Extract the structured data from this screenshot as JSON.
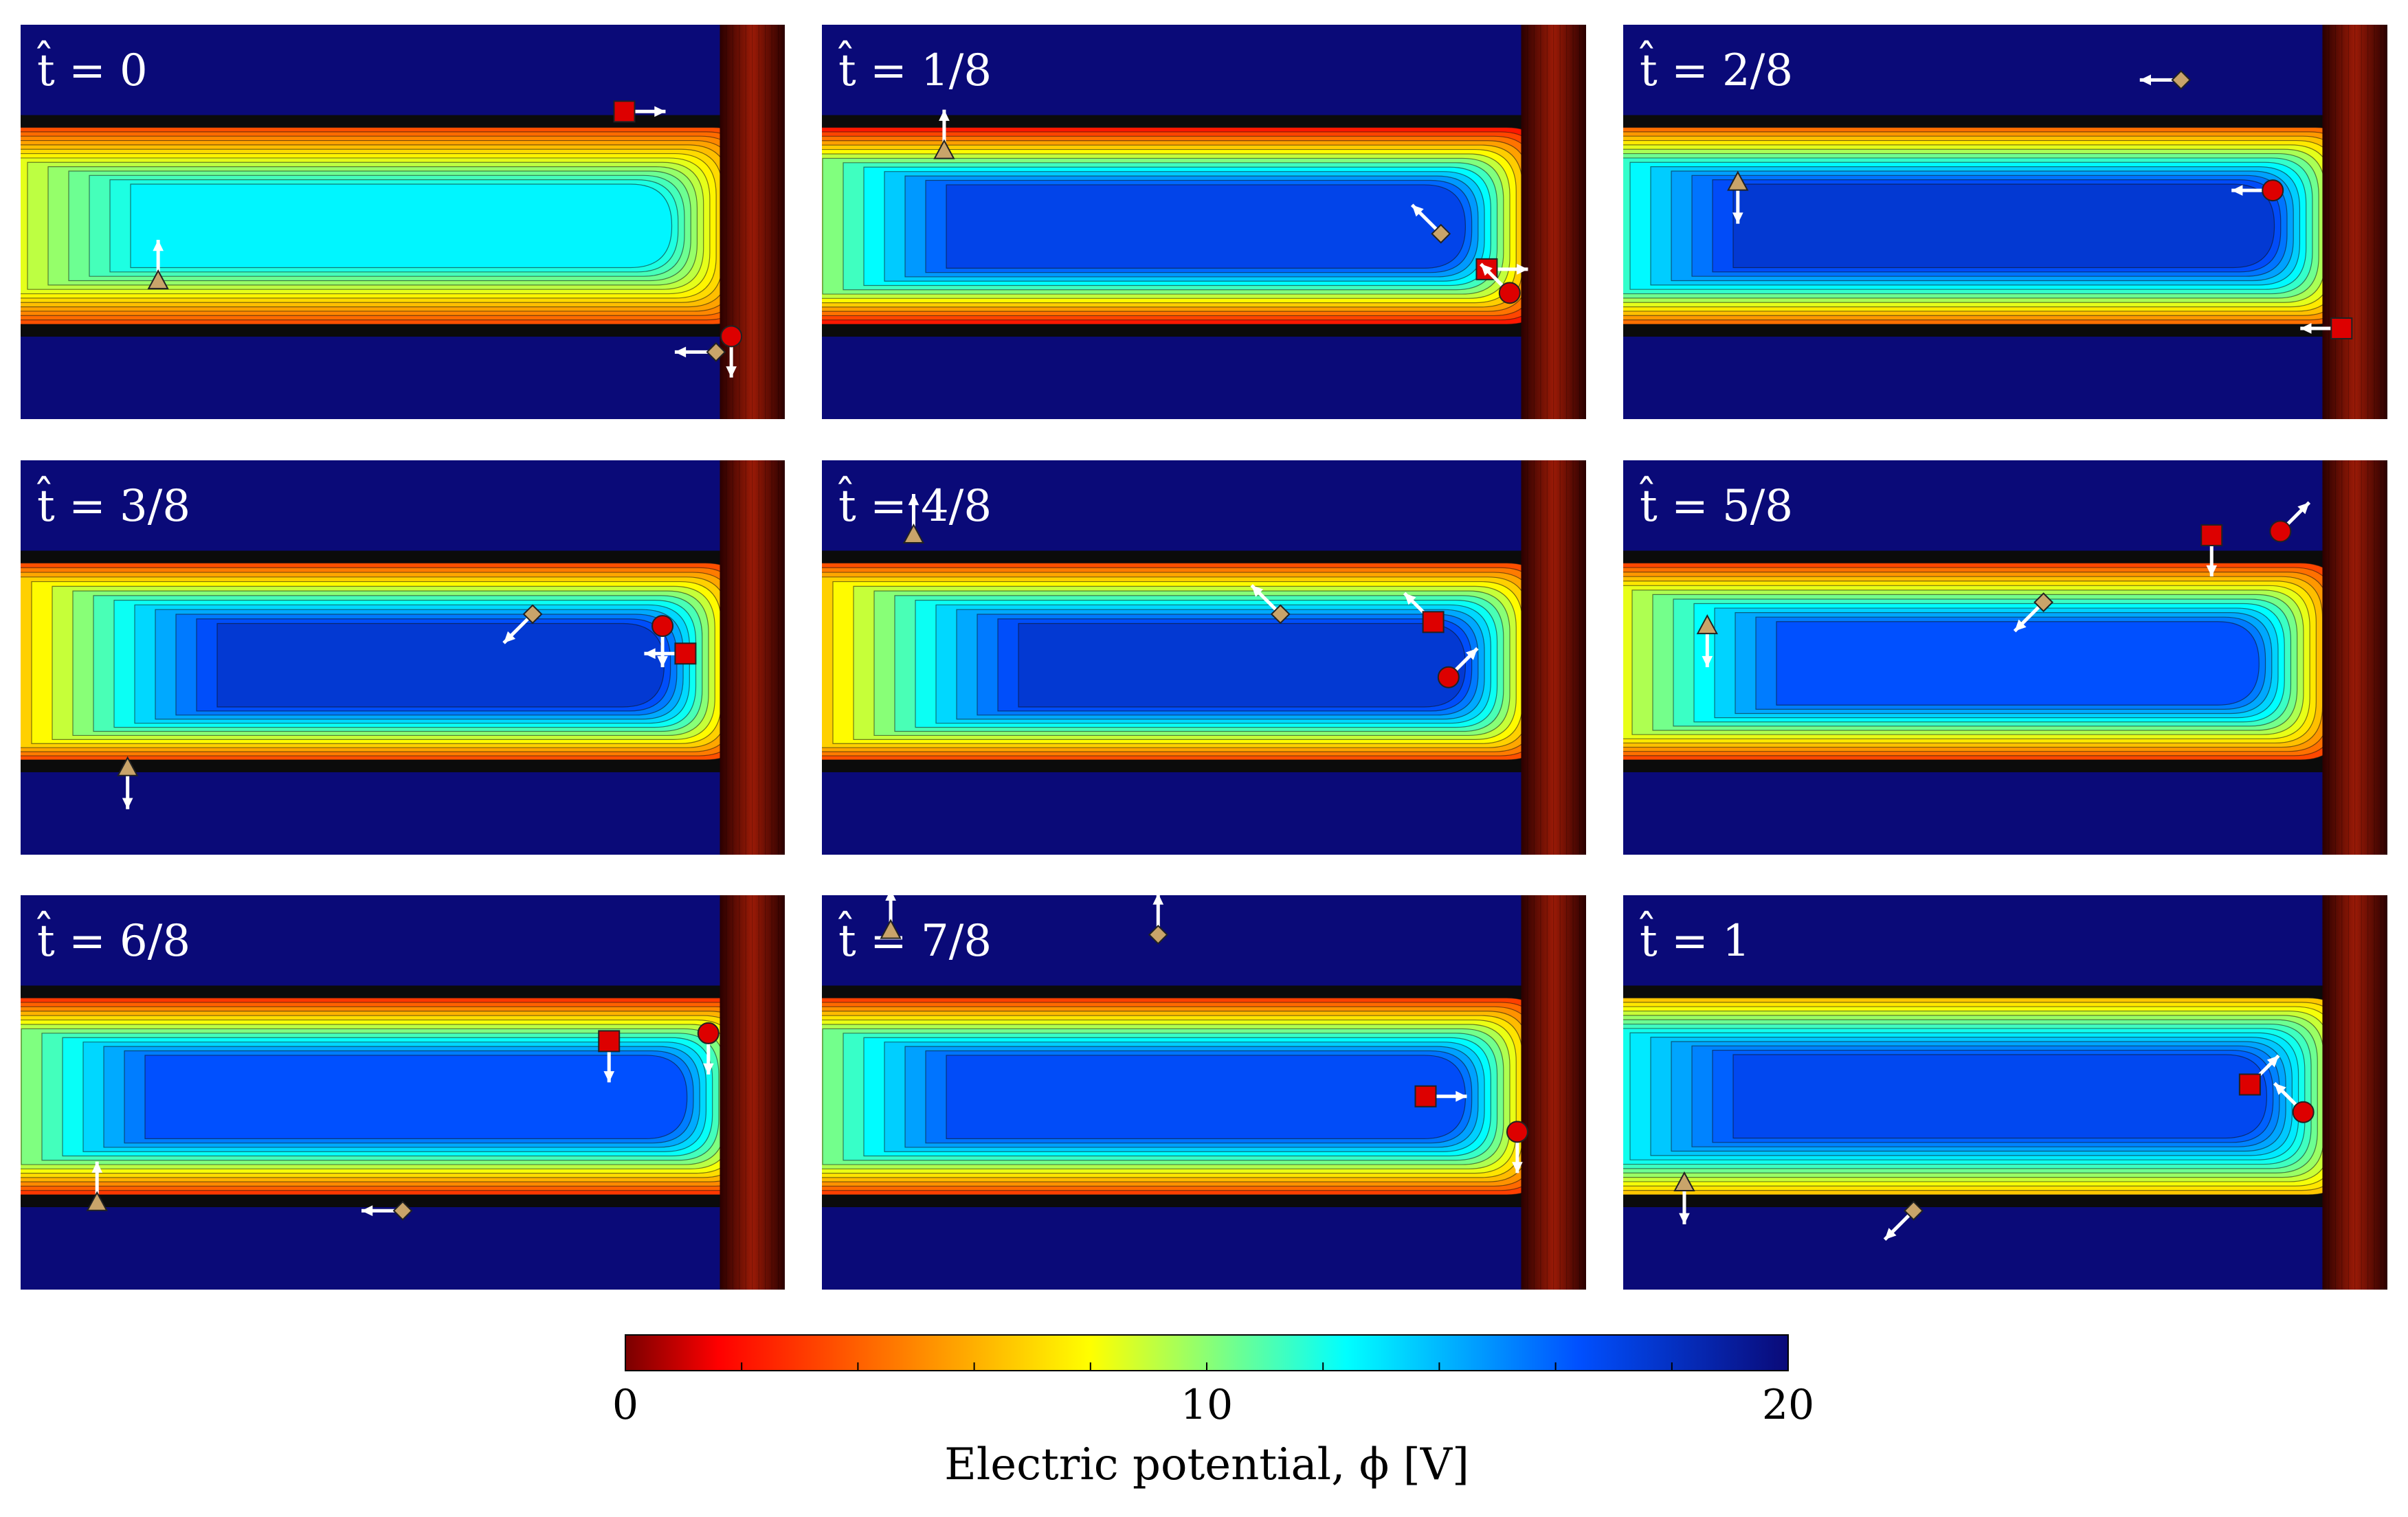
{
  "panels": [
    {
      "label": "t̂ = 0",
      "band": [
        0.18,
        0.63
      ],
      "mid": 0.5,
      "tip": 0.96,
      "gap": "upper",
      "wall_top": 0.5,
      "jet": 0.25,
      "markers": [
        {
          "shape": "triangle",
          "x": 0.18,
          "y": 0.35,
          "dir": "up"
        },
        {
          "shape": "square",
          "x": 0.79,
          "y": 0.78,
          "dir": "right"
        },
        {
          "shape": "diamond",
          "x": 0.91,
          "y": 0.17,
          "dir": "left"
        },
        {
          "shape": "circle",
          "x": 0.93,
          "y": 0.21,
          "dir": "down"
        }
      ]
    },
    {
      "label": "t̂ = 1/8",
      "band": [
        0.11,
        0.85
      ],
      "mid": 0.45,
      "tip": 0.95,
      "gap": "lower",
      "wall_top": 0.5,
      "jet": 0.3,
      "markers": [
        {
          "shape": "triangle",
          "x": 0.16,
          "y": 0.68,
          "dir": "up"
        },
        {
          "shape": "diamond",
          "x": 0.81,
          "y": 0.47,
          "dir": "up-left"
        },
        {
          "shape": "square",
          "x": 0.87,
          "y": 0.38,
          "dir": "right"
        },
        {
          "shape": "circle",
          "x": 0.9,
          "y": 0.32,
          "dir": "up-left"
        }
      ]
    },
    {
      "label": "t̂ = 2/8",
      "band": [
        0.22,
        0.88
      ],
      "mid": 0.5,
      "tip": 0.96,
      "gap": "lower",
      "wall_top": 0.5,
      "jet": 0.3,
      "markers": [
        {
          "shape": "diamond",
          "x": 0.73,
          "y": 0.86,
          "dir": "left"
        },
        {
          "shape": "triangle",
          "x": 0.15,
          "y": 0.6,
          "dir": "down"
        },
        {
          "shape": "circle",
          "x": 0.85,
          "y": 0.58,
          "dir": "left"
        },
        {
          "shape": "square",
          "x": 0.94,
          "y": 0.23,
          "dir": "left"
        }
      ]
    },
    {
      "label": "t̂ = 3/8",
      "band": [
        0.18,
        0.88
      ],
      "mid": 0.2,
      "tip": 0.95,
      "gap": "none",
      "wall_top": 0.5,
      "jet": 0.3,
      "markers": [
        {
          "shape": "diamond",
          "x": 0.67,
          "y": 0.61,
          "dir": "down-left"
        },
        {
          "shape": "triangle",
          "x": 0.14,
          "y": 0.22,
          "dir": "down"
        },
        {
          "shape": "circle",
          "x": 0.84,
          "y": 0.58,
          "dir": "down"
        },
        {
          "shape": "square",
          "x": 0.87,
          "y": 0.51,
          "dir": "left"
        }
      ]
    },
    {
      "label": "t̂ = 4/8",
      "band": [
        0.18,
        0.88
      ],
      "mid": 0.2,
      "tip": 0.95,
      "gap": "upper",
      "wall_top": 0.5,
      "jet": 0.3,
      "markers": [
        {
          "shape": "triangle",
          "x": 0.12,
          "y": 0.81,
          "dir": "up"
        },
        {
          "shape": "diamond",
          "x": 0.6,
          "y": 0.61,
          "dir": "up-left"
        },
        {
          "shape": "square",
          "x": 0.8,
          "y": 0.59,
          "dir": "up-left"
        },
        {
          "shape": "circle",
          "x": 0.82,
          "y": 0.45,
          "dir": "up-right"
        }
      ]
    },
    {
      "label": "t̂ = 5/8",
      "band": [
        0.17,
        0.82
      ],
      "mid": 0.35,
      "tip": 0.94,
      "gap": "upper",
      "wall_top": 0.5,
      "jet": 0.2,
      "markers": [
        {
          "shape": "triangle",
          "x": 0.11,
          "y": 0.58,
          "dir": "down"
        },
        {
          "shape": "diamond",
          "x": 0.55,
          "y": 0.64,
          "dir": "down-left"
        },
        {
          "shape": "square",
          "x": 0.77,
          "y": 0.81,
          "dir": "down"
        },
        {
          "shape": "circle",
          "x": 0.86,
          "y": 0.82,
          "dir": "up-right"
        }
      ]
    },
    {
      "label": "t̂ = 6/8",
      "band": [
        0.15,
        0.82
      ],
      "mid": 0.45,
      "tip": 0.98,
      "gap": "lower",
      "wall_top": 0.8,
      "jet": 0.2,
      "markers": [
        {
          "shape": "triangle",
          "x": 0.1,
          "y": 0.22,
          "dir": "up"
        },
        {
          "shape": "diamond",
          "x": 0.5,
          "y": 0.2,
          "dir": "left"
        },
        {
          "shape": "square",
          "x": 0.77,
          "y": 0.63,
          "dir": "down"
        },
        {
          "shape": "circle",
          "x": 0.9,
          "y": 0.65,
          "dir": "down"
        }
      ]
    },
    {
      "label": "t̂ = 7/8",
      "band": [
        0.16,
        0.83
      ],
      "mid": 0.45,
      "tip": 0.95,
      "gap": "upper",
      "wall_top": 0.5,
      "jet": 0.3,
      "markers": [
        {
          "shape": "triangle",
          "x": 0.09,
          "y": 0.91,
          "dir": "up"
        },
        {
          "shape": "diamond",
          "x": 0.44,
          "y": 0.9,
          "dir": "up"
        },
        {
          "shape": "square",
          "x": 0.79,
          "y": 0.49,
          "dir": "right"
        },
        {
          "shape": "circle",
          "x": 0.91,
          "y": 0.4,
          "dir": "down"
        }
      ]
    },
    {
      "label": "t̂ = 1",
      "band": [
        0.33,
        0.84
      ],
      "mid": 0.5,
      "tip": 0.95,
      "gap": "lower",
      "wall_top": 0.5,
      "jet": 0.2,
      "markers": [
        {
          "shape": "triangle",
          "x": 0.08,
          "y": 0.27,
          "dir": "down"
        },
        {
          "shape": "diamond",
          "x": 0.38,
          "y": 0.2,
          "dir": "down-left"
        },
        {
          "shape": "square",
          "x": 0.82,
          "y": 0.52,
          "dir": "up-right"
        },
        {
          "shape": "circle",
          "x": 0.89,
          "y": 0.45,
          "dir": "up-left"
        }
      ]
    }
  ],
  "colorbar": {
    "label": "Electric potential, ϕ [V]",
    "ticks": [
      "0",
      "10",
      "20"
    ],
    "min": 0,
    "max": 20,
    "stops": [
      "#7a0000",
      "#ff0000",
      "#ffff00",
      "#00ffff",
      "#0050ff",
      "#0a0a78"
    ]
  },
  "marker_colors": {
    "triangle": "#c9a46a",
    "diamond": "#c9a46a",
    "square": "#dd0000",
    "circle": "#dd0000",
    "arrow": "#ffffff"
  }
}
